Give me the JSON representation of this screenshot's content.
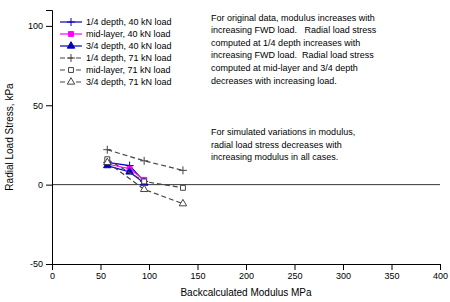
{
  "chart_data": {
    "type": "line",
    "x_label": "Backcalculated Modulus MPa",
    "y_label": "Radial Load Stress, kPa",
    "xlim": [
      0,
      400
    ],
    "ylim": [
      -50,
      110
    ],
    "xticks": [
      0,
      50,
      100,
      150,
      200,
      250,
      300,
      350,
      400
    ],
    "yticks": [
      -50,
      0,
      50,
      100
    ],
    "legend": "upper left",
    "series": [
      {
        "name": "1/4 depth, 40 kN load",
        "color": "#0000bb",
        "line_style": "solid",
        "marker": "plus",
        "x": [
          57,
          80,
          95
        ],
        "values": [
          14,
          12,
          2
        ]
      },
      {
        "name": "mid-layer, 40 kN load",
        "color": "#ff00ff",
        "line_style": "solid",
        "marker": "square",
        "x": [
          57,
          80,
          95
        ],
        "values": [
          13,
          10,
          3
        ]
      },
      {
        "name": "3/4 depth, 40 kN load",
        "color": "#0000bb",
        "line_style": "solid",
        "marker": "triangle",
        "x": [
          57,
          80,
          95
        ],
        "values": [
          12,
          8,
          1
        ]
      },
      {
        "name": "1/4 depth, 71 kN load",
        "color": "#444444",
        "line_style": "dashed",
        "marker": "plus",
        "x": [
          57,
          95,
          135
        ],
        "values": [
          22,
          15,
          9
        ]
      },
      {
        "name": "mid-layer, 71 kN load",
        "color": "#444444",
        "line_style": "dashed",
        "marker": "square-open",
        "x": [
          57,
          95,
          135
        ],
        "values": [
          16,
          2,
          -2
        ]
      },
      {
        "name": "3/4 depth, 71 kN load",
        "color": "#444444",
        "line_style": "dashed",
        "marker": "triangle-open",
        "x": [
          57,
          95,
          135
        ],
        "values": [
          14,
          -3,
          -12
        ]
      }
    ],
    "annotations": [
      "For original data, modulus increases with\nincreasing FWD load.   Radial load stress\ncomputed at 1/4 depth increases with\nincreasing FWD load.  Radial load stress\ncomputed at mid-layer and 3/4 depth\ndecreases with increasing load.",
      "For simulated variations in modulus,\nradial load stress decreases with\nincreasing modulus in all cases."
    ]
  }
}
